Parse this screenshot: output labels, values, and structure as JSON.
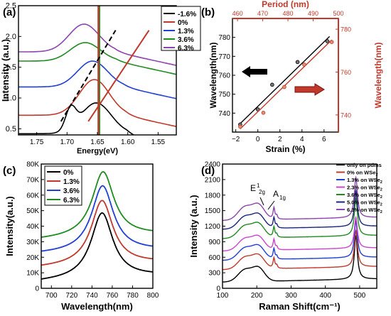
{
  "panels": {
    "a": {
      "label": "(a)"
    },
    "b": {
      "label": "(b)"
    },
    "c": {
      "label": "(c)"
    },
    "d": {
      "label": "(d)"
    }
  },
  "chart_data": [
    {
      "id": "a",
      "type": "line",
      "title": "",
      "xlabel": "Energy(eV)",
      "ylabel": "Intensity (a.u.)",
      "xlim": [
        1.78,
        1.52
      ],
      "ylim": [
        0.4,
        2.5
      ],
      "x_reversed": true,
      "xticks": [
        1.75,
        1.7,
        1.65,
        1.6,
        1.55
      ],
      "xtick_labels": [
        "1.75",
        "1.70",
        "1.65",
        "1.60",
        "1.55"
      ],
      "yticks": [
        0.5,
        1.0,
        1.5,
        2.0,
        2.5
      ],
      "ytick_labels": [
        "0.5",
        "1.0",
        "1.5",
        "2.0",
        "2.5"
      ],
      "legend_position": "top-right",
      "series": [
        {
          "name": "-1.6%",
          "color": "#000000",
          "baseline": 0.42,
          "peak_x": 1.652,
          "peak_y": 0.92,
          "shoulder_x": 1.694,
          "shoulder_y": 0.82
        },
        {
          "name": "0%",
          "color": "#c0392b",
          "baseline": 0.72,
          "peak_x": 1.655,
          "peak_y": 1.3
        },
        {
          "name": "1.3%",
          "color": "#1f3fd6",
          "baseline": 1.18,
          "peak_x": 1.658,
          "peak_y": 1.6
        },
        {
          "name": "3.6%",
          "color": "#1e8c1e",
          "baseline": 1.6,
          "peak_x": 1.67,
          "peak_y": 1.9
        },
        {
          "name": "6.3%",
          "color": "#8e44ad",
          "baseline": 1.75,
          "peak_x": 1.672,
          "peak_y": 2.2
        }
      ],
      "annotations": {
        "vertical_line_x": 1.648,
        "dashed_trend": [
          [
            1.71,
            0.62
          ],
          [
            1.62,
            2.1
          ]
        ],
        "solid_trend": [
          [
            1.665,
            0.62
          ],
          [
            1.565,
            2.1
          ]
        ]
      }
    },
    {
      "id": "b",
      "type": "scatter",
      "xlabel": "Strain (%)",
      "ylabel": "Wavelength(nm)",
      "top_xlabel": "Period (nm)",
      "right_ylabel": "Wavelength(nm)",
      "xlim": [
        -2.3,
        7.3
      ],
      "ylim": [
        730,
        790
      ],
      "top_xlim": [
        458,
        500
      ],
      "right_ylim": [
        732,
        785
      ],
      "xticks": [
        -2,
        0,
        2,
        4,
        6
      ],
      "xtick_labels": [
        "−2",
        "0",
        "2",
        "4",
        "6"
      ],
      "yticks": [
        740,
        750,
        760,
        770,
        780
      ],
      "ytick_labels": [
        "740",
        "750",
        "760",
        "770",
        "780"
      ],
      "top_xticks": [
        460,
        470,
        480,
        490,
        500
      ],
      "top_xtick_labels": [
        "460",
        "470",
        "480",
        "490",
        "500"
      ],
      "right_yticks": [
        740,
        760,
        780
      ],
      "right_ytick_labels": [
        "740",
        "760",
        "780"
      ],
      "series": [
        {
          "name": "",
          "color": "#000000",
          "x": [
            -1.6,
            0,
            1.3,
            3.6,
            6.3
          ],
          "y": [
            734,
            742,
            755,
            767,
            778
          ],
          "fit": [
            [
              -1.6,
              734.5
            ],
            [
              6.5,
              780.5
            ]
          ]
        },
        {
          "name": "",
          "color": "#c0392b",
          "x": [
            -1.6,
            0.5,
            2.4,
            4.2,
            6.7
          ],
          "y": [
            734.5,
            741,
            753,
            763.5,
            774
          ],
          "fit": [
            [
              -1.6,
              733.5
            ],
            [
              6.7,
              775
            ]
          ]
        }
      ]
    },
    {
      "id": "c",
      "type": "line",
      "xlabel": "Wavelength(nm)",
      "ylabel": "Intensity(a.u.)",
      "xlim": [
        690,
        800
      ],
      "ylim": [
        0,
        80000
      ],
      "xticks": [
        700,
        720,
        740,
        760,
        780,
        800
      ],
      "xtick_labels": [
        "700",
        "720",
        "740",
        "760",
        "780",
        "800"
      ],
      "yticks": [
        0,
        10000,
        20000,
        30000,
        40000,
        50000,
        60000,
        70000,
        80000
      ],
      "ytick_labels": [
        "0",
        "10K",
        "20K",
        "30K",
        "40K",
        "50K",
        "60K",
        "70K",
        "80K"
      ],
      "legend_position": "top-left",
      "series": [
        {
          "name": "0%",
          "color": "#000000",
          "center": 750,
          "peak": 48500,
          "base_left": 4000,
          "base_right": 8000
        },
        {
          "name": "1.3%",
          "color": "#c0392b",
          "center": 750,
          "peak": 56500,
          "base_left": 13000,
          "base_right": 16500
        },
        {
          "name": "3.6%",
          "color": "#1f3fd6",
          "center": 750.5,
          "peak": 66000,
          "base_left": 22000,
          "base_right": 24500
        },
        {
          "name": "6.3%",
          "color": "#1e8c1e",
          "center": 751,
          "peak": 75000,
          "base_left": 31000,
          "base_right": 34500
        }
      ]
    },
    {
      "id": "d",
      "type": "line",
      "xlabel": "Raman Shift(cm⁻¹)",
      "ylabel": "Intensity (a.u.)",
      "xlim": [
        100,
        550
      ],
      "ylim": [
        0,
        2400
      ],
      "xticks": [
        100,
        200,
        300,
        400,
        500
      ],
      "xtick_labels": [
        "100",
        "200",
        "300",
        "400",
        "500"
      ],
      "yticks": [
        0,
        300,
        600,
        900,
        1200,
        1500,
        1800,
        2100,
        2400
      ],
      "ytick_labels": [
        "0",
        "300",
        "600",
        "900",
        "1200",
        "1500",
        "1800",
        "2100",
        "2400"
      ],
      "legend_position": "top-right",
      "peak_labels": {
        "e2g_main": "E",
        "e2g_sup": "1",
        "e2g_sub": "2g",
        "a1g_main": "A",
        "a1g_sub": "1g"
      },
      "series": [
        {
          "name": "only on pdms",
          "label_main": "only on pdms",
          "label_sub": "",
          "color": "#000000",
          "offset": 180,
          "hump": 300,
          "e2g": 0,
          "a1g": 0,
          "si": 850
        },
        {
          "name": "0% on WSe2",
          "label_main": "0% on WSe",
          "label_sub": "2",
          "color": "#c0392b",
          "offset": 420,
          "hump": 300,
          "e2g": 200,
          "a1g": 100,
          "si": 700
        },
        {
          "name": "1.3% on WSe2",
          "label_main": "1.3% on WSe",
          "label_sub": "2",
          "color": "#1f3fd6",
          "offset": 600,
          "hump": 300,
          "e2g": 200,
          "a1g": 100,
          "si": 700
        },
        {
          "name": "2.3% on WSe2",
          "label_main": "2.3% on WSe",
          "label_sub": "2",
          "color": "#cc44cc",
          "offset": 780,
          "hump": 300,
          "e2g": 200,
          "a1g": 100,
          "si": 600
        },
        {
          "name": "3.6% on WSe2",
          "label_main": "3.6% on WSe",
          "label_sub": "2",
          "color": "#1e8c1e",
          "offset": 1020,
          "hump": 310,
          "e2g": 200,
          "a1g": 100,
          "si": 730
        },
        {
          "name": "5.0% on WSe2",
          "label_main": "5.0% on WSe",
          "label_sub": "2",
          "color": "#1a237e",
          "offset": 1200,
          "hump": 310,
          "e2g": 200,
          "a1g": 100,
          "si": 700
        },
        {
          "name": "6.3% on WSe2",
          "label_main": "6.3% on WSe",
          "label_sub": "2",
          "color": "#8e44ad",
          "offset": 1370,
          "hump": 330,
          "e2g": 220,
          "a1g": 120,
          "si": 780
        }
      ]
    }
  ]
}
